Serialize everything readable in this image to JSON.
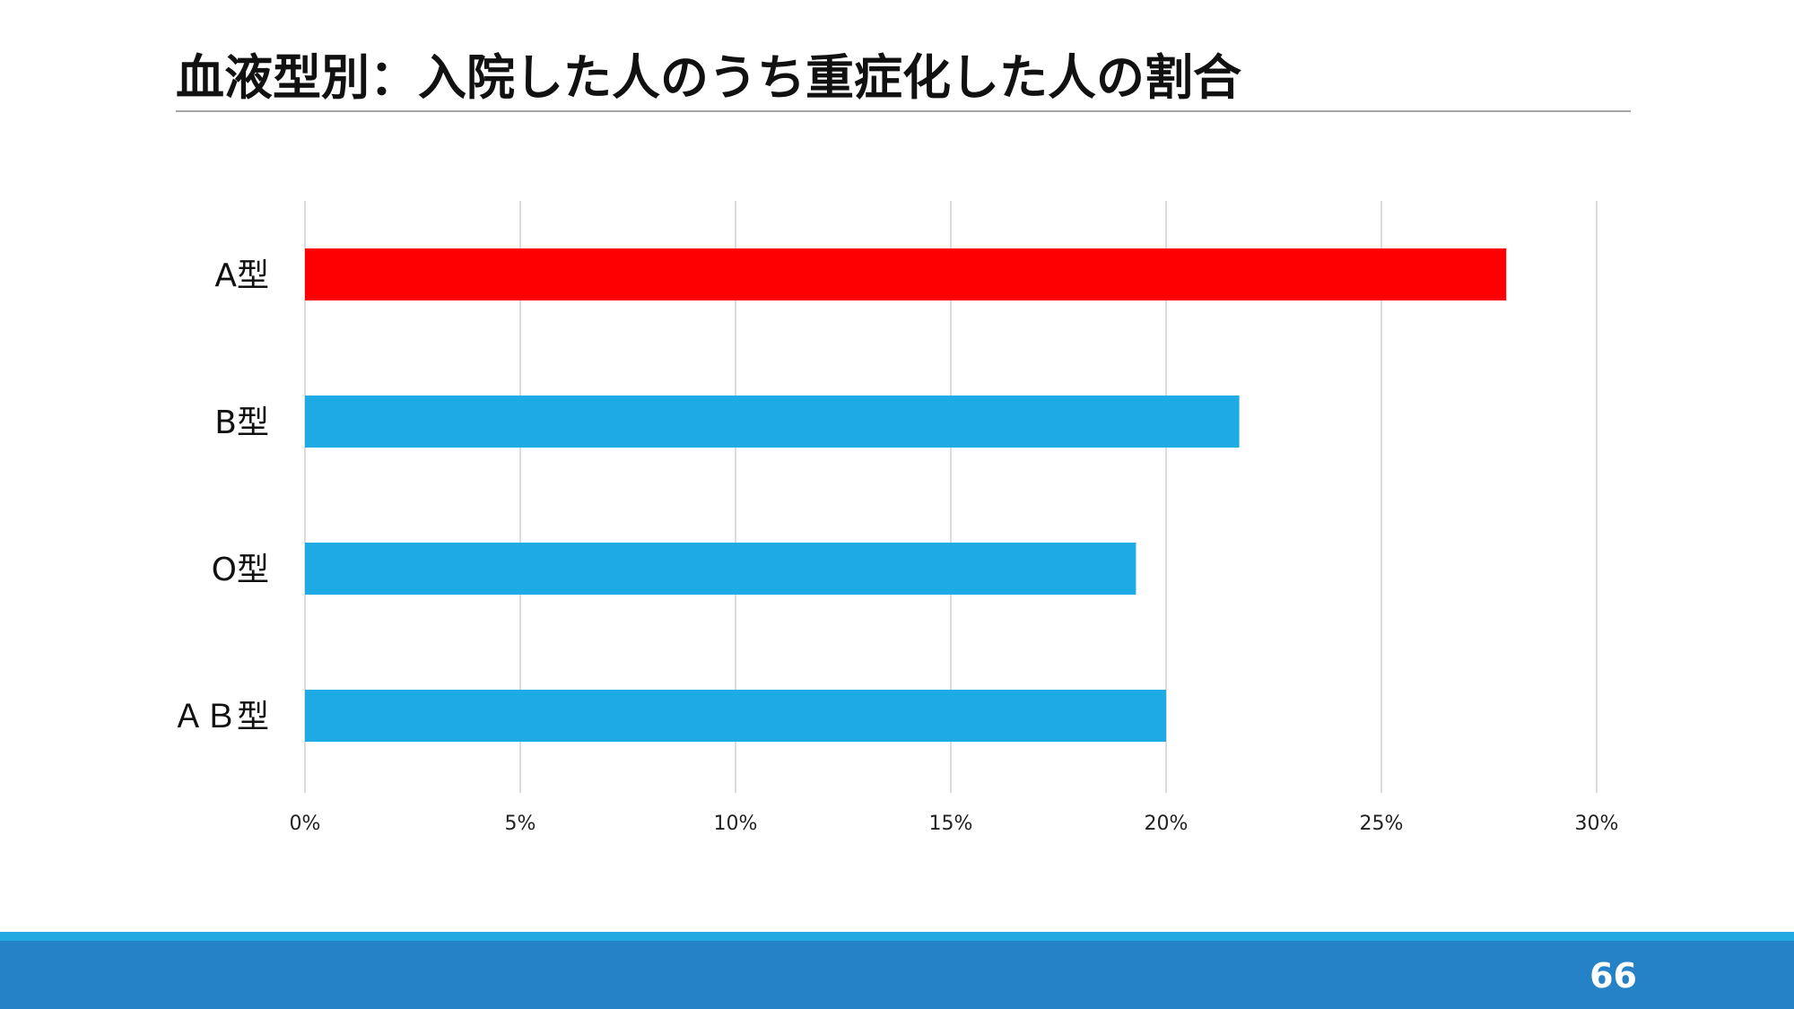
{
  "slide": {
    "title": "血液型別：入院した人のうち重症化した人の割合",
    "page_number": "66"
  },
  "chart_data": {
    "type": "bar",
    "orientation": "horizontal",
    "categories": [
      "A型",
      "B型",
      "O型",
      "ＡＢ型"
    ],
    "values": [
      27.9,
      21.7,
      19.3,
      20.0
    ],
    "value_unit": "%",
    "xlim": [
      0,
      30
    ],
    "xticks": [
      "0%",
      "5%",
      "10%",
      "15%",
      "20%",
      "25%",
      "30%"
    ],
    "grid": true,
    "legend": "none",
    "colors": {
      "highlight": "#ff0000",
      "default": "#1eabe3",
      "grid": "#d0d0d0"
    },
    "highlight_index": 0
  }
}
